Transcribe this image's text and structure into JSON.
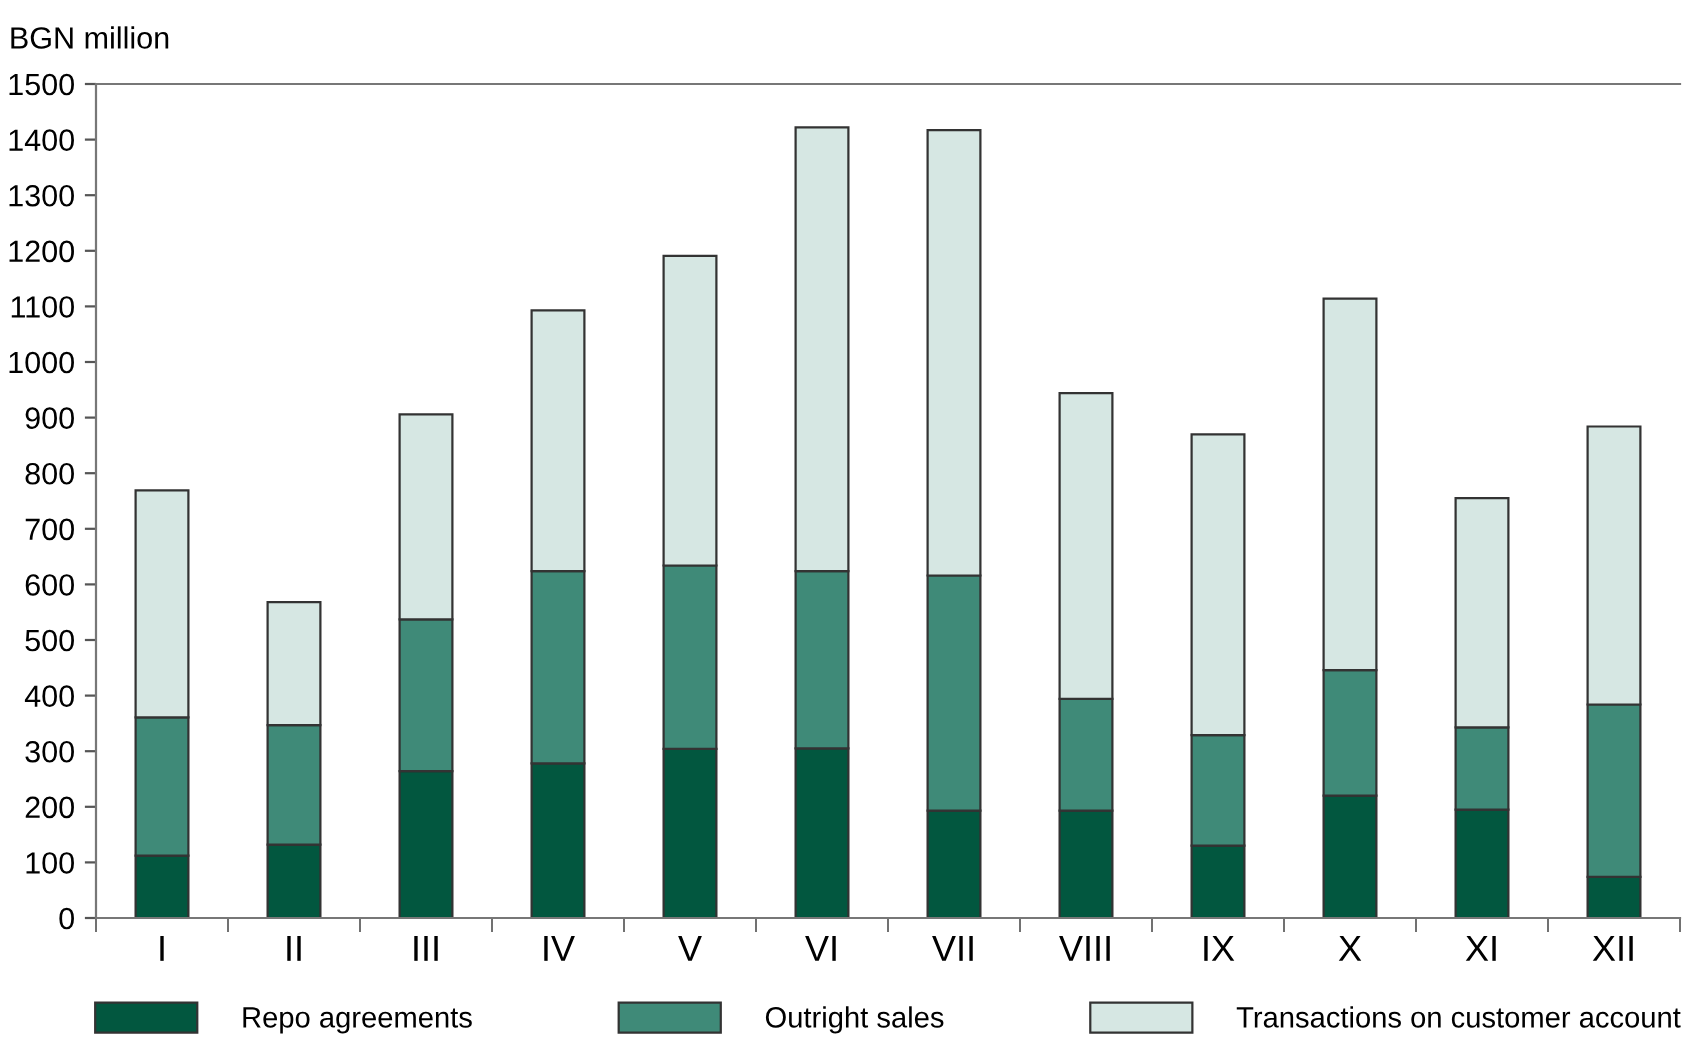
{
  "chart_data": {
    "type": "bar",
    "stacked": true,
    "ylabel": "BGN million",
    "categories": [
      "I",
      "II",
      "III",
      "IV",
      "V",
      "VI",
      "VII",
      "VIII",
      "IX",
      "X",
      "XI",
      "XII"
    ],
    "series": [
      {
        "name": "Repo agreements",
        "color": "#02573f",
        "values": [
          112,
          132,
          264,
          278,
          304,
          305,
          193,
          193,
          130,
          220,
          195,
          74
        ]
      },
      {
        "name": "Outright sales",
        "color": "#3f8a78",
        "values": [
          249,
          215,
          273,
          346,
          330,
          319,
          423,
          201,
          199,
          226,
          148,
          310
        ]
      },
      {
        "name": "Transactions on customer account",
        "color": "#d6e7e3",
        "values": [
          408,
          221,
          369,
          469,
          557,
          798,
          801,
          550,
          541,
          668,
          412,
          500
        ]
      }
    ],
    "ylim": [
      0,
      1500
    ],
    "yticks": [
      0,
      100,
      200,
      300,
      400,
      500,
      600,
      700,
      800,
      900,
      1000,
      1100,
      1200,
      1300,
      1400,
      1500
    ],
    "grid": false,
    "legend": "bottom"
  }
}
